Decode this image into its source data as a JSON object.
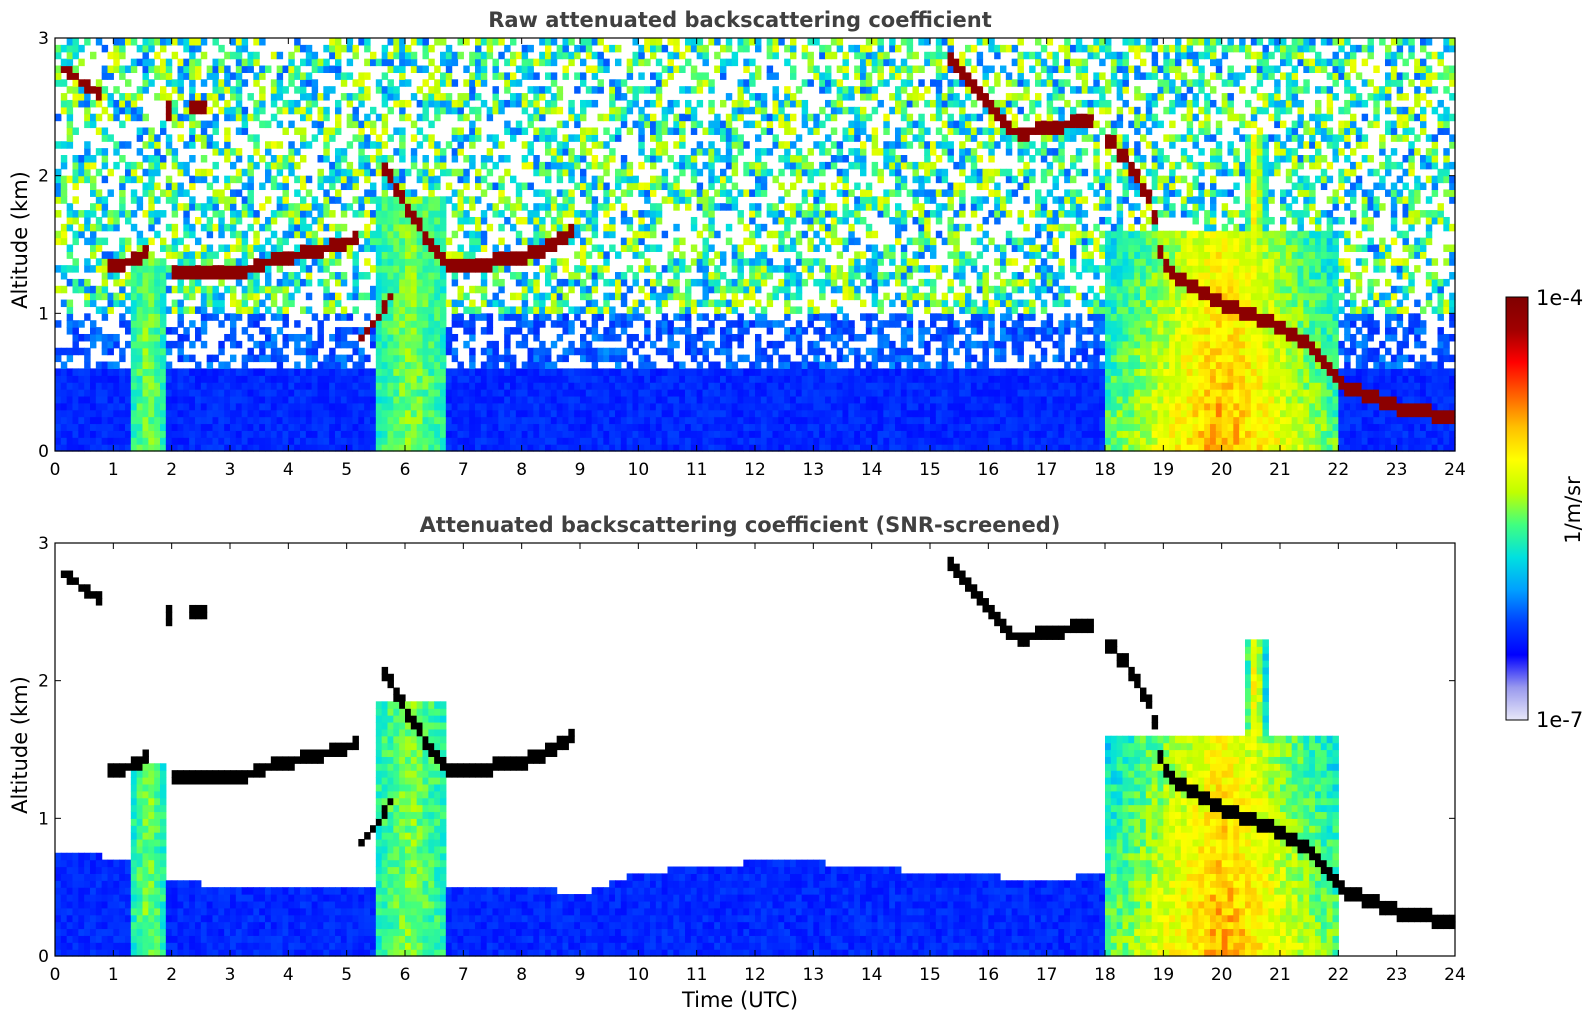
{
  "chart_data": [
    {
      "type": "heatmap",
      "title": "Raw attenuated backscattering coefficient",
      "xlabel": "",
      "ylabel": "Altitude (km)",
      "xlim": [
        0,
        24
      ],
      "ylim": [
        0,
        3
      ],
      "x_ticks": [
        "0",
        "1",
        "2",
        "3",
        "4",
        "5",
        "6",
        "7",
        "8",
        "9",
        "10",
        "11",
        "12",
        "13",
        "14",
        "15",
        "16",
        "17",
        "18",
        "19",
        "20",
        "21",
        "22",
        "23",
        "24"
      ],
      "y_ticks": [
        "0",
        "1",
        "2",
        "3"
      ],
      "features": {
        "cloud_layers": [
          {
            "points": [
              [
                0.1,
                2.8
              ],
              [
                0.4,
                2.7
              ],
              [
                0.8,
                2.58
              ]
            ],
            "thickness": 0.08
          },
          {
            "points": [
              [
                1.9,
                2.5
              ],
              [
                2.0,
                2.45
              ]
            ],
            "thickness": 0.12
          },
          {
            "points": [
              [
                2.3,
                2.5
              ],
              [
                2.6,
                2.5
              ]
            ],
            "thickness": 0.08
          },
          {
            "points": [
              [
                0.95,
                1.35
              ],
              [
                1.3,
                1.38
              ],
              [
                1.6,
                1.45
              ]
            ],
            "thickness": 0.09
          },
          {
            "points": [
              [
                2.0,
                1.28
              ],
              [
                2.8,
                1.28
              ],
              [
                3.3,
                1.32
              ],
              [
                3.8,
                1.4
              ],
              [
                4.5,
                1.45
              ],
              [
                5.2,
                1.55
              ]
            ],
            "thickness": 0.09
          },
          {
            "points": [
              [
                5.2,
                0.8
              ],
              [
                5.5,
                0.95
              ],
              [
                5.8,
                1.15
              ]
            ],
            "thickness": 0.08
          },
          {
            "points": [
              [
                5.6,
                2.1
              ],
              [
                5.8,
                1.95
              ],
              [
                6.0,
                1.8
              ],
              [
                6.3,
                1.6
              ],
              [
                6.7,
                1.35
              ],
              [
                7.2,
                1.35
              ],
              [
                7.8,
                1.4
              ],
              [
                8.3,
                1.45
              ],
              [
                8.9,
                1.6
              ]
            ],
            "thickness": 0.1
          },
          {
            "points": [
              [
                15.3,
                2.85
              ],
              [
                15.6,
                2.75
              ],
              [
                16.0,
                2.5
              ],
              [
                16.5,
                2.3
              ],
              [
                17.0,
                2.35
              ],
              [
                17.4,
                2.38
              ],
              [
                17.8,
                2.4
              ]
            ],
            "thickness": 0.09
          },
          {
            "points": [
              [
                18.0,
                2.3
              ],
              [
                18.4,
                2.1
              ],
              [
                18.8,
                1.8
              ],
              [
                19.0,
                1.35
              ],
              [
                19.5,
                1.2
              ],
              [
                20.0,
                1.08
              ],
              [
                20.5,
                1.0
              ],
              [
                21.0,
                0.9
              ],
              [
                21.5,
                0.78
              ],
              [
                22.0,
                0.5
              ],
              [
                22.5,
                0.4
              ],
              [
                23.0,
                0.32
              ],
              [
                24.0,
                0.25
              ]
            ],
            "thickness": 0.1
          }
        ],
        "aerosol_plumes": [
          {
            "x_range": [
              1.35,
              1.85
            ],
            "top": 1.4
          },
          {
            "x_range": [
              5.5,
              6.7
            ],
            "top": 1.85
          },
          {
            "x_range": [
              18.05,
              22.0
            ],
            "top": 1.6
          },
          {
            "x_range": [
              20.4,
              20.75
            ],
            "top": 2.3
          }
        ],
        "boundary_layer_top": 0.6,
        "low_snr_region_above": 0.6
      }
    },
    {
      "type": "heatmap",
      "title": "Attenuated backscattering coefficient (SNR-screened)",
      "xlabel": "Time (UTC)",
      "ylabel": "Altitude (km)",
      "xlim": [
        0,
        24
      ],
      "ylim": [
        0,
        3
      ],
      "x_ticks": [
        "0",
        "1",
        "2",
        "3",
        "4",
        "5",
        "6",
        "7",
        "8",
        "9",
        "10",
        "11",
        "12",
        "13",
        "14",
        "15",
        "16",
        "17",
        "18",
        "19",
        "20",
        "21",
        "22",
        "23",
        "24"
      ],
      "y_ticks": [
        "0",
        "1",
        "2",
        "3"
      ],
      "features": {
        "boundary_layer_top_series": [
          [
            0,
            0.75
          ],
          [
            1,
            0.72
          ],
          [
            2,
            0.55
          ],
          [
            3,
            0.5
          ],
          [
            4,
            0.48
          ],
          [
            5,
            0.5
          ],
          [
            6,
            0.5
          ],
          [
            7,
            0.5
          ],
          [
            8,
            0.52
          ],
          [
            9,
            0.45
          ],
          [
            10,
            0.6
          ],
          [
            11,
            0.65
          ],
          [
            12,
            0.68
          ],
          [
            13,
            0.68
          ],
          [
            14,
            0.65
          ],
          [
            15,
            0.6
          ],
          [
            16,
            0.58
          ],
          [
            17,
            0.55
          ],
          [
            18,
            0.6
          ]
        ],
        "noise_screened": true
      }
    }
  ],
  "colorbar": {
    "label": "1/m/sr",
    "min_label": "1e-7",
    "max_label": "1e-4",
    "scale": "log",
    "colormap": [
      "#e8e8f8",
      "#9999ee",
      "#0000ff",
      "#0040ff",
      "#00a0ff",
      "#00e0e0",
      "#40ff80",
      "#c0ff00",
      "#ffff00",
      "#ffc000",
      "#ff6000",
      "#ff0000",
      "#a00000",
      "#800000"
    ]
  }
}
